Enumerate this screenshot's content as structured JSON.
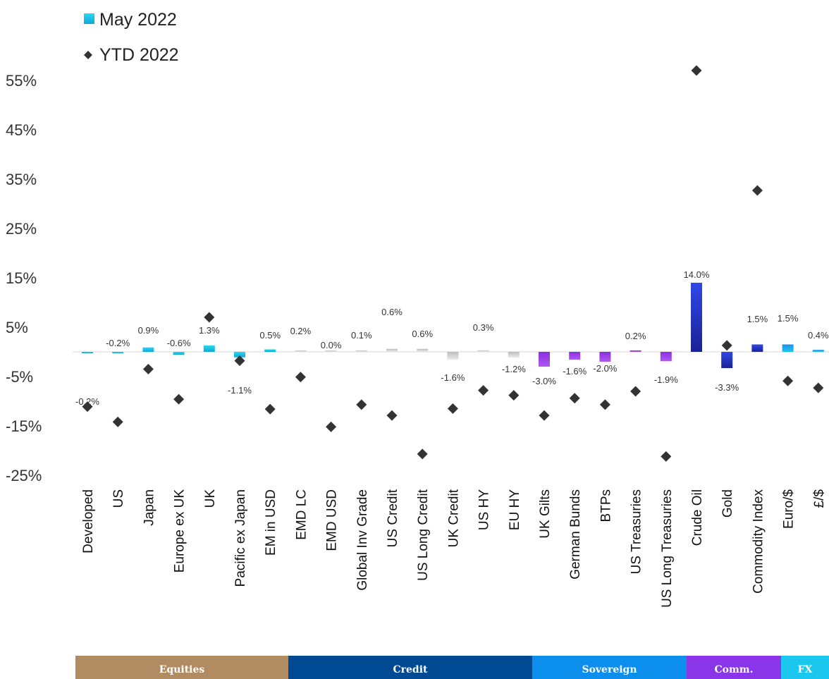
{
  "chart_data": {
    "type": "bar",
    "categories": [
      "Developed",
      "US",
      "Japan",
      "Europe ex UK",
      "UK",
      "Pacific ex Japan",
      "EM in USD",
      "EMD LC",
      "EMD USD",
      "Global Inv Grade",
      "US Credit",
      "US Long Credit",
      "UK Credit",
      "US HY",
      "EU HY",
      "UK Gilts",
      "German Bunds",
      "BTPs",
      "US Treasuries",
      "US Long Treasuries",
      "Crude Oil",
      "Gold",
      "Commodity Index",
      "Euro/$",
      "£/$"
    ],
    "series": [
      {
        "name": "May 2022",
        "marker": "bar",
        "values": [
          -0.2,
          -0.2,
          0.9,
          -0.6,
          1.3,
          -1.1,
          0.5,
          0.2,
          0.0,
          0.1,
          0.6,
          0.6,
          -1.6,
          0.3,
          -1.2,
          -3.0,
          -1.6,
          -2.0,
          0.2,
          -1.9,
          14.0,
          -3.3,
          1.5,
          1.5,
          0.4
        ],
        "labels": [
          "-0.2%",
          "-0.2%",
          "0.9%",
          "-0.6%",
          "1.3%",
          "-1.1%",
          "0.5%",
          "0.2%",
          "0.0%",
          "0.1%",
          "0.6%",
          "0.6%",
          "-1.6%",
          "0.3%",
          "-1.2%",
          "-3.0%",
          "-1.6%",
          "-2.0%",
          "0.2%",
          "-1.9%",
          "14.0%",
          "-3.3%",
          "1.5%",
          "1.5%",
          "0.4%"
        ]
      },
      {
        "name": "YTD 2022",
        "marker": "diamond",
        "values": [
          -11.1,
          -14.2,
          -3.5,
          -9.6,
          7.0,
          -1.8,
          -11.6,
          -5.1,
          -15.2,
          -10.7,
          -12.9,
          -20.7,
          -11.5,
          -7.8,
          -8.8,
          -12.9,
          -9.4,
          -10.7,
          -8.0,
          -21.2,
          57.0,
          1.3,
          32.7,
          -5.9,
          -7.3
        ]
      }
    ],
    "yaxis": {
      "ticks": [
        55,
        45,
        35,
        25,
        15,
        5,
        -5,
        -15,
        -25
      ],
      "tick_labels": [
        "55%",
        "45%",
        "35%",
        "25%",
        "15%",
        "5%",
        "-5%",
        "-15%",
        "-25%"
      ],
      "range": [
        -25,
        60
      ]
    },
    "colors": {
      "equities": "#1ec8e6",
      "credit": "#c8c8c8",
      "sovereign": "#9b3de6",
      "commodities": "#2238c6",
      "fx": "#1aa0e0",
      "diamond": "#333333"
    },
    "category_groups": [
      "equities",
      "equities",
      "equities",
      "equities",
      "equities",
      "equities",
      "equities",
      "credit",
      "credit",
      "credit",
      "credit",
      "credit",
      "credit",
      "credit",
      "credit",
      "sovereign",
      "sovereign",
      "sovereign",
      "sovereign",
      "sovereign",
      "commodities",
      "commodities",
      "commodities",
      "fx",
      "fx"
    ],
    "legend": {
      "position": "top-left"
    },
    "grid": false,
    "groups": [
      {
        "label": "Equities",
        "color": "#b18c62"
      },
      {
        "label": "Credit",
        "color": "#004a94"
      },
      {
        "label": "Sovereign",
        "color": "#0b8eec"
      },
      {
        "label": "Comm.",
        "color": "#8a36e8"
      },
      {
        "label": "FX",
        "color": "#1bc7ee"
      }
    ]
  }
}
